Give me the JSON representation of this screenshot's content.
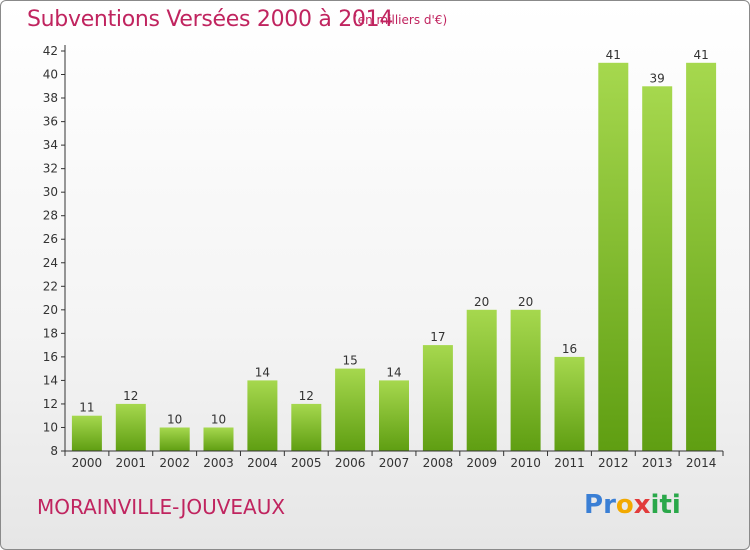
{
  "header": {
    "title": "Subventions Versées 2000 à 2014",
    "unit_note": "(en milliers d'€)"
  },
  "footer": {
    "commune": "MORAINVILLE-JOUVEAUX",
    "logo_letters": [
      {
        "ch": "P",
        "color": "#3a7fd5"
      },
      {
        "ch": "r",
        "color": "#3a7fd5"
      },
      {
        "ch": "o",
        "color": "#f2a900"
      },
      {
        "ch": "x",
        "color": "#e23b3b"
      },
      {
        "ch": "i",
        "color": "#2aa84a"
      },
      {
        "ch": "t",
        "color": "#2aa84a"
      },
      {
        "ch": "i",
        "color": "#2aa84a"
      }
    ]
  },
  "chart_data": {
    "type": "bar",
    "title": "Subventions Versées 2000 à 2014",
    "subtitle": "(en milliers d'€)",
    "xlabel": "",
    "ylabel": "",
    "categories": [
      "2000",
      "2001",
      "2002",
      "2003",
      "2004",
      "2005",
      "2006",
      "2007",
      "2008",
      "2009",
      "2010",
      "2011",
      "2012",
      "2013",
      "2014"
    ],
    "values": [
      11,
      12,
      10,
      10,
      14,
      12,
      15,
      14,
      17,
      20,
      20,
      16,
      41,
      39,
      41
    ],
    "ylim": [
      8,
      42
    ],
    "yticks": [
      8,
      10,
      12,
      14,
      16,
      18,
      20,
      22,
      24,
      26,
      28,
      30,
      32,
      34,
      36,
      38,
      40,
      42
    ],
    "grid": false,
    "data_labels": true,
    "bar_color_light": "#a6d84e",
    "bar_color_dark": "#5f9e12",
    "axis_color": "#333333"
  }
}
